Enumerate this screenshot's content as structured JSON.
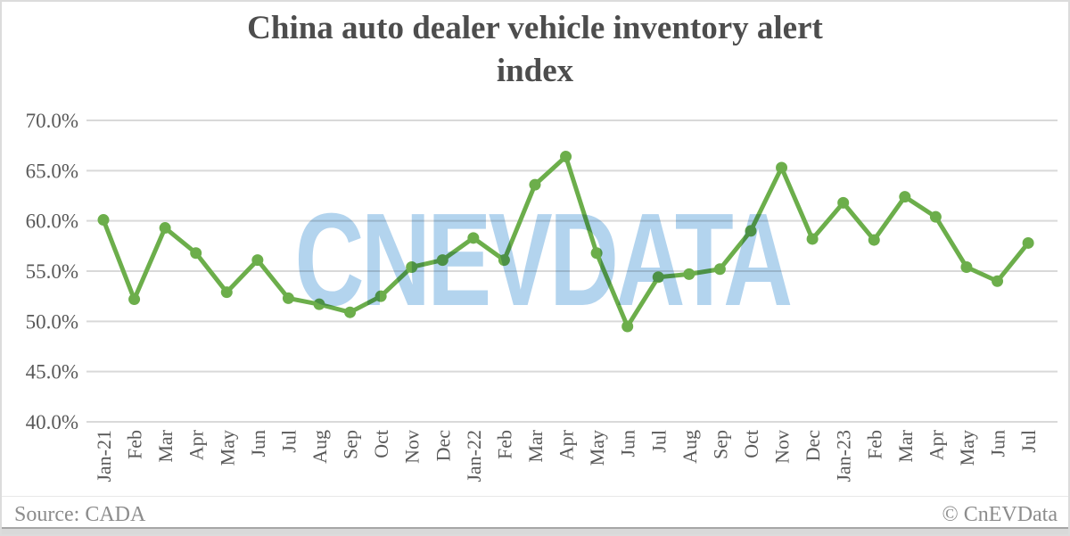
{
  "title": {
    "line1": "China auto dealer vehicle inventory alert",
    "line2": "index"
  },
  "watermark": "CNEVDATA",
  "footer": {
    "source": "Source: CADA",
    "credit": "© CnEVData"
  },
  "colors": {
    "line": "#6cae4b",
    "marker": "#6cae4b",
    "gridline": "#d9d9d9",
    "axis_text": "#595959",
    "title_text": "#4d4d4d",
    "watermark_blue": "#b3d4ee",
    "footer_text": "#8c8c8c"
  },
  "chart_data": {
    "type": "line",
    "title": "China auto dealer vehicle inventory alert index",
    "categories": [
      "Jan-21",
      "Feb",
      "Mar",
      "Apr",
      "May",
      "Jun",
      "Jul",
      "Aug",
      "Sep",
      "Oct",
      "Nov",
      "Dec",
      "Jan-22",
      "Feb",
      "Mar",
      "Apr",
      "May",
      "Jun",
      "Jul",
      "Aug",
      "Sep",
      "Oct",
      "Nov",
      "Dec",
      "Jan-23",
      "Feb",
      "Mar",
      "Apr",
      "May",
      "Jun",
      "Jul"
    ],
    "series": [
      {
        "name": "Vehicle inventory alert index",
        "values": [
          60.1,
          52.2,
          59.3,
          56.8,
          52.9,
          56.1,
          52.3,
          51.7,
          50.9,
          52.5,
          55.4,
          56.1,
          58.3,
          56.1,
          63.6,
          66.4,
          56.8,
          49.5,
          54.4,
          54.7,
          55.2,
          59.0,
          65.3,
          58.2,
          61.8,
          58.1,
          62.4,
          60.4,
          55.4,
          54.0,
          57.8
        ]
      }
    ],
    "xlabel": "",
    "ylabel": "",
    "ylim": [
      40,
      70
    ],
    "grid": true,
    "legend": false,
    "yticks": [
      {
        "value": 70,
        "label": "70.0%"
      },
      {
        "value": 65,
        "label": "65.0%"
      },
      {
        "value": 60,
        "label": "60.0%"
      },
      {
        "value": 55,
        "label": "55.0%"
      },
      {
        "value": 50,
        "label": "50.0%"
      },
      {
        "value": 45,
        "label": "45.0%"
      },
      {
        "value": 40,
        "label": "40.0%"
      }
    ]
  }
}
